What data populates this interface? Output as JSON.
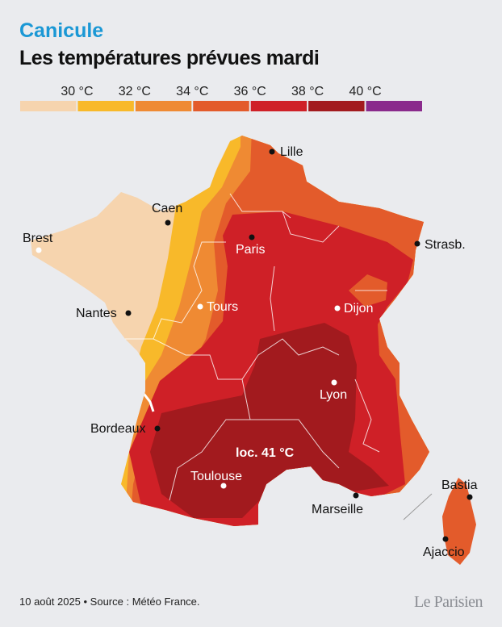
{
  "header": {
    "kicker": "Canicule",
    "title": "Les températures prévues mardi"
  },
  "legend": {
    "labels": [
      "30 °C",
      "32 °C",
      "34 °C",
      "36 °C",
      "38 °C",
      "40 °C"
    ],
    "colors": [
      "#f6d4ae",
      "#f8b92a",
      "#ef8a33",
      "#e35b2b",
      "#cf2027",
      "#a21a1e",
      "#8a2a8c"
    ]
  },
  "cities": [
    {
      "name": "Lille"
    },
    {
      "name": "Caen"
    },
    {
      "name": "Brest"
    },
    {
      "name": "Paris"
    },
    {
      "name": "Strasb."
    },
    {
      "name": "Tours"
    },
    {
      "name": "Nantes"
    },
    {
      "name": "Dijon"
    },
    {
      "name": "Lyon"
    },
    {
      "name": "Bordeaux"
    },
    {
      "name": "Toulouse"
    },
    {
      "name": "Marseille"
    },
    {
      "name": "Bastia"
    },
    {
      "name": "Ajaccio"
    }
  ],
  "annotation": "loc. 41 °C",
  "footer": {
    "source": "10 août 2025 • Source : Météo France.",
    "logo": "Le Parisien"
  }
}
